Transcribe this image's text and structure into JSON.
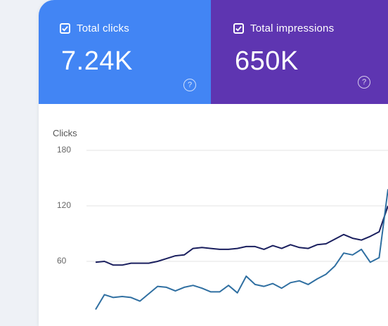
{
  "metrics": {
    "clicks": {
      "label": "Total clicks",
      "value": "7.24K",
      "color": "#4285f4",
      "checked": true,
      "info_icon": "help-circle-icon"
    },
    "impressions": {
      "label": "Total impressions",
      "value": "650K",
      "color": "#5e35b1",
      "checked": true,
      "info_icon": "help-circle-icon"
    }
  },
  "chart_data": {
    "type": "line",
    "ylabel": "Clicks",
    "ylim": [
      0,
      180
    ],
    "yticks": [
      {
        "label": "180",
        "value": 180
      },
      {
        "label": "120",
        "value": 120
      },
      {
        "label": "60",
        "value": 60
      }
    ],
    "grid": true,
    "series": [
      {
        "color": "#1a1f5e",
        "values": [
          59,
          60,
          56,
          56,
          58,
          58,
          58,
          60,
          63,
          66,
          67,
          74,
          75,
          74,
          73,
          73,
          74,
          76,
          76,
          73,
          77,
          74,
          78,
          75,
          74,
          78,
          79,
          84,
          89,
          85,
          83,
          87,
          92,
          120
        ]
      },
      {
        "color": "#2f6fa1",
        "values": [
          8,
          24,
          21,
          22,
          21,
          17,
          25,
          33,
          32,
          28,
          32,
          34,
          31,
          27,
          27,
          34,
          26,
          44,
          35,
          33,
          36,
          31,
          37,
          39,
          35,
          41,
          46,
          55,
          69,
          67,
          73,
          59,
          64,
          138
        ]
      }
    ]
  }
}
